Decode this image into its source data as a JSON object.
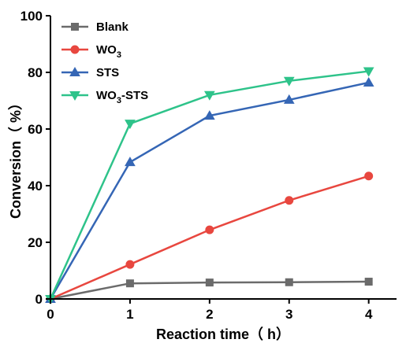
{
  "chart_data": {
    "type": "line",
    "x": [
      0,
      1,
      2,
      3,
      4
    ],
    "xticks": [
      "0",
      "1",
      "2",
      "3",
      "4"
    ],
    "yticks": [
      "0",
      "20",
      "40",
      "60",
      "80",
      "100"
    ],
    "xlim": [
      0,
      4.35
    ],
    "ylim": [
      0,
      100
    ],
    "xlabel": "Reaction time（ h）",
    "ylabel": "Conversion（ %）",
    "legend_position": "top-left",
    "grid": false,
    "series": [
      {
        "name": "Blank",
        "name_main": "Blank",
        "name_sub": "",
        "name_tail": "",
        "color": "#6b6b6b",
        "marker": "square",
        "values": [
          0,
          5.5,
          5.8,
          5.9,
          6.1
        ]
      },
      {
        "name": "WO3",
        "name_main": "WO",
        "name_sub": "3",
        "name_tail": "",
        "color": "#e8473f",
        "marker": "circle",
        "values": [
          0,
          12.2,
          24.4,
          34.8,
          43.4
        ]
      },
      {
        "name": "STS",
        "name_main": "STS",
        "name_sub": "",
        "name_tail": "",
        "color": "#3566b5",
        "marker": "triangle-up",
        "values": [
          0,
          48.3,
          64.7,
          70.3,
          76.4
        ]
      },
      {
        "name": "WO3-STS",
        "name_main": "WO",
        "name_sub": "3",
        "name_tail": "-STS",
        "color": "#2ec38a",
        "marker": "triangle-down",
        "values": [
          0,
          61.9,
          72.0,
          77.0,
          80.4
        ]
      }
    ]
  }
}
